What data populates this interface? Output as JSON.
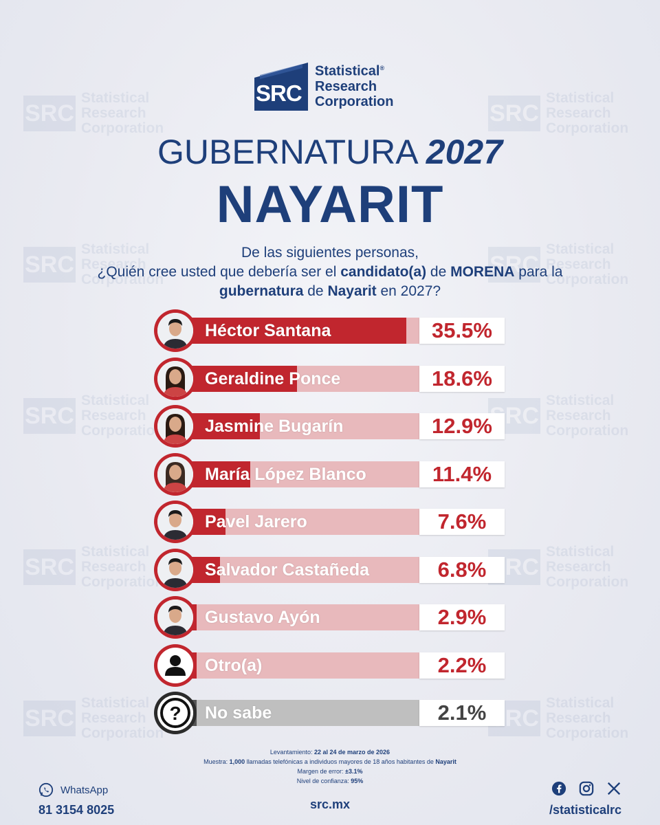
{
  "brand": {
    "logo_abbr": "SRC",
    "logo_line1": "Statistical",
    "logo_line2": "Research",
    "logo_line3": "Corporation",
    "reg_mark": "®",
    "accent_color": "#1e3f7a",
    "bar_color": "#c1262e"
  },
  "heading": {
    "title_word": "GUBERNATURA",
    "title_year": "2027",
    "state": "NAYARIT"
  },
  "question": {
    "line1": "De las siguientes personas,",
    "line2_a": "¿Quién cree usted que debería ser el ",
    "line2_b": "candidato(a)",
    "line2_c": " de ",
    "line2_d": "MORENA",
    "line2_e": " para la",
    "line3_a": "gubernatura",
    "line3_b": " de ",
    "line3_c": "Nayarit",
    "line3_d": " en 2027?"
  },
  "chart_data": {
    "type": "bar",
    "orientation": "horizontal",
    "categories": [
      "Héctor Santana",
      "Geraldine Ponce",
      "Jasmine Bugarín",
      "María López Blanco",
      "Pavel Jarero",
      "Salvador Castañeda",
      "Gustavo Ayón",
      "Otro(a)",
      "No sabe"
    ],
    "values": [
      35.5,
      18.6,
      12.9,
      11.4,
      7.6,
      6.8,
      2.9,
      2.2,
      2.1
    ],
    "value_labels": [
      "35.5%",
      "18.6%",
      "12.9%",
      "11.4%",
      "7.6%",
      "6.8%",
      "2.9%",
      "2.2%",
      "2.1%"
    ],
    "icons": [
      "person-photo-icon",
      "person-photo-icon",
      "person-photo-icon",
      "person-photo-icon",
      "person-photo-icon",
      "person-photo-icon",
      "person-photo-icon",
      "user-silhouette-icon",
      "question-mark-icon"
    ],
    "xlim": [
      0,
      40
    ]
  },
  "footnotes": {
    "survey_label": "Levantamiento:",
    "survey_value": "22 al 24 de marzo de 2026",
    "sample_label": "Muestra:",
    "sample_value": "1,000",
    "sample_text": " llamadas telefónicas a individuos mayores de 18 años habitantes de ",
    "sample_place": "Nayarit",
    "margin_label": "Margen de error:",
    "margin_value": "±3.1%",
    "confidence_label": "Nivel de confianza:",
    "confidence_value": "95%"
  },
  "footer": {
    "whatsapp_label": "WhatsApp",
    "whatsapp_number": "81 3154 8025",
    "website": "src.mx",
    "social_handle": "/statisticalrc",
    "social_icons": [
      "facebook-icon",
      "instagram-icon",
      "x-icon"
    ]
  }
}
